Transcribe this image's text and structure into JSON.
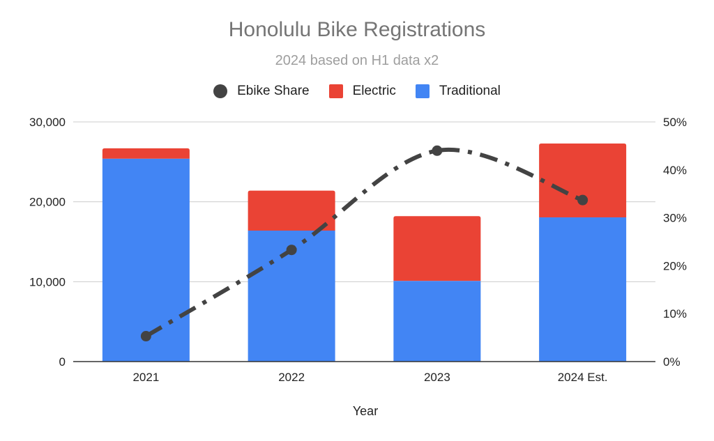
{
  "chart_data": {
    "type": "bar",
    "stacked": true,
    "title": "Honolulu Bike Registrations",
    "subtitle": "2024 based on H1 data x2",
    "xlabel": "Year",
    "ylabel": "",
    "y2label": "",
    "categories": [
      "2021",
      "2022",
      "2023",
      "2024 Est."
    ],
    "series": [
      {
        "name": "Traditional",
        "type": "bar",
        "axis": "left",
        "color": "#4285f4",
        "values": [
          25400,
          16400,
          10100,
          18050
        ]
      },
      {
        "name": "Electric",
        "type": "bar",
        "axis": "left",
        "color": "#ea4335",
        "values": [
          1300,
          5000,
          8100,
          9250
        ]
      },
      {
        "name": "Ebike Share",
        "type": "line",
        "axis": "right",
        "color": "#434343",
        "line_style": "dash-dot",
        "smooth": true,
        "values": [
          0.053,
          0.233,
          0.44,
          0.337
        ]
      }
    ],
    "ylim": [
      0,
      30000
    ],
    "y2lim": [
      0,
      0.5
    ],
    "yticks": [
      "0",
      "10,000",
      "20,000",
      "30,000"
    ],
    "y2ticks": [
      "0%",
      "10%",
      "20%",
      "30%",
      "40%",
      "50%"
    ],
    "grid": true,
    "legend_position": "top"
  },
  "legend": [
    {
      "label": "Ebike Share",
      "shape": "circle",
      "color": "#434343"
    },
    {
      "label": "Electric",
      "shape": "square",
      "color": "#ea4335"
    },
    {
      "label": "Traditional",
      "shape": "square",
      "color": "#4285f4"
    }
  ]
}
